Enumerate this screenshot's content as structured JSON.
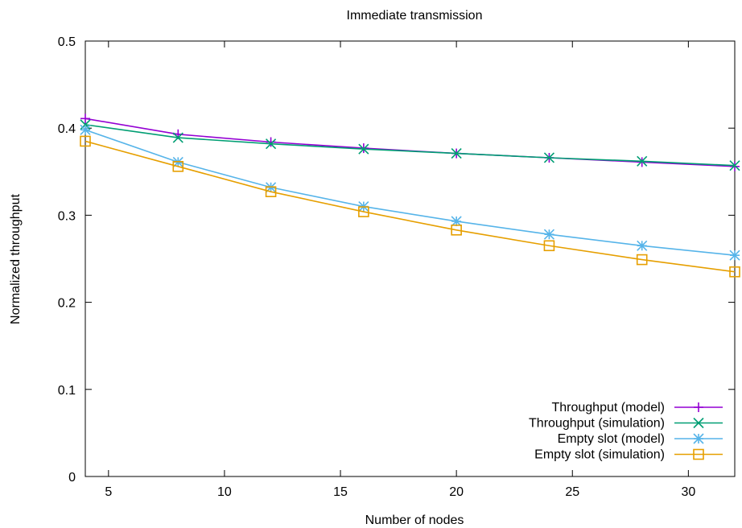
{
  "chart_data": {
    "type": "line",
    "title": "Immediate transmission",
    "xlabel": "Number of nodes",
    "ylabel": "Normalized throughput",
    "xlim": [
      4,
      32
    ],
    "ylim": [
      0,
      0.5
    ],
    "xticks": [
      5,
      10,
      15,
      20,
      25,
      30
    ],
    "xtick_labels": [
      "5",
      "10",
      "15",
      "20",
      "25",
      "30"
    ],
    "yticks": [
      0,
      0.1,
      0.2,
      0.3,
      0.4,
      0.5
    ],
    "ytick_labels": [
      "0",
      "0.1",
      "0.2",
      "0.3",
      "0.4",
      "0.5"
    ],
    "grid": false,
    "legend_position": "bottom-right",
    "x": [
      4,
      8,
      12,
      16,
      20,
      24,
      28,
      32
    ],
    "series": [
      {
        "name": "Throughput (model)",
        "color": "#9400d3",
        "marker": "plus",
        "values": [
          0.411,
          0.393,
          0.384,
          0.377,
          0.371,
          0.366,
          0.361,
          0.356
        ]
      },
      {
        "name": "Throughput (simulation)",
        "color": "#009e73",
        "marker": "cross",
        "values": [
          0.404,
          0.389,
          0.382,
          0.376,
          0.371,
          0.366,
          0.362,
          0.357
        ]
      },
      {
        "name": "Empty slot (model)",
        "color": "#56b4e9",
        "marker": "asterisk",
        "values": [
          0.398,
          0.361,
          0.332,
          0.31,
          0.293,
          0.278,
          0.265,
          0.254
        ]
      },
      {
        "name": "Empty slot (simulation)",
        "color": "#e69f00",
        "marker": "square",
        "values": [
          0.385,
          0.356,
          0.327,
          0.304,
          0.283,
          0.265,
          0.249,
          0.235
        ]
      }
    ]
  }
}
